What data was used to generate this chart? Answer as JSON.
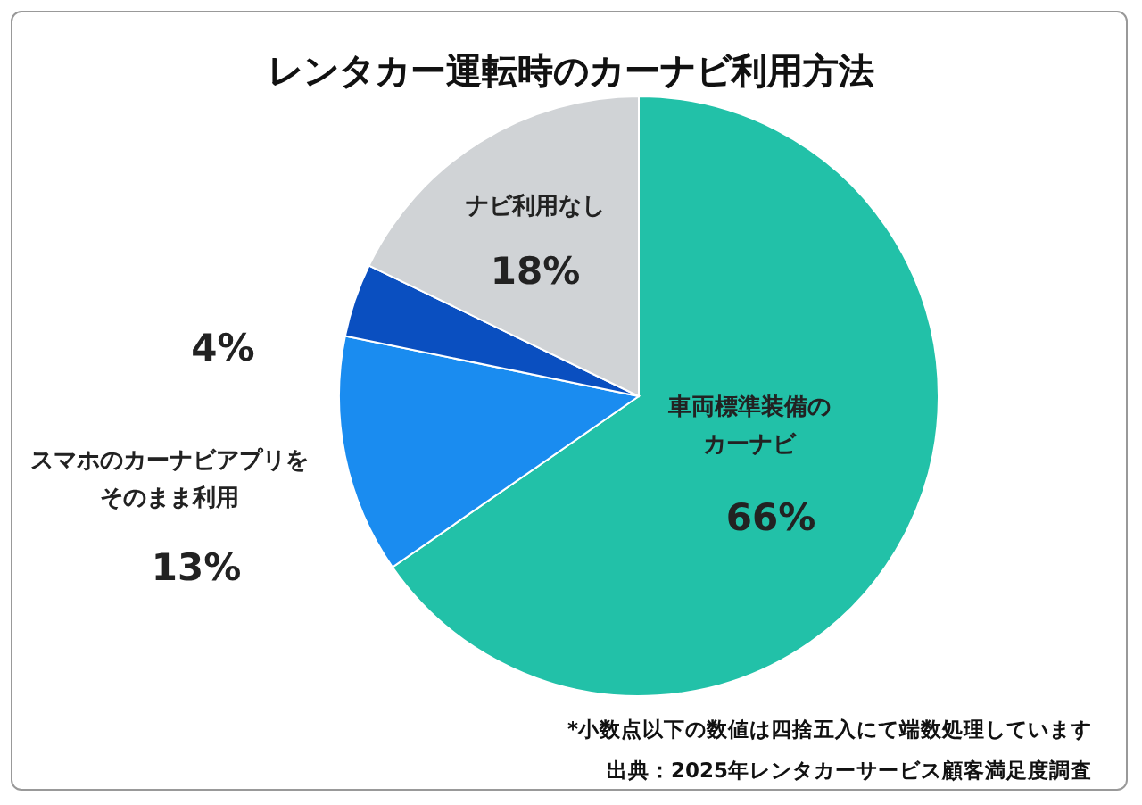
{
  "chart_data": {
    "type": "pie",
    "title": "レンタカー運転時のカーナビ利用方法",
    "categories": [
      "車両標準装備のカーナビ",
      "スマホのカーナビアプリをそのまま利用",
      null,
      "ナビ利用なし"
    ],
    "values": [
      66,
      13,
      4,
      18
    ],
    "colors": [
      "#22c1a8",
      "#1a8cf0",
      "#0a4fc0",
      "#d0d3d6"
    ],
    "value_labels": [
      "66%",
      "13%",
      "4%",
      "18%"
    ],
    "legend": false,
    "annotations": [
      "*小数点以下の数値は四捨五入にて端数処理しています",
      "出典：2025年レンタカーサービス顧客満足度調査"
    ]
  }
}
